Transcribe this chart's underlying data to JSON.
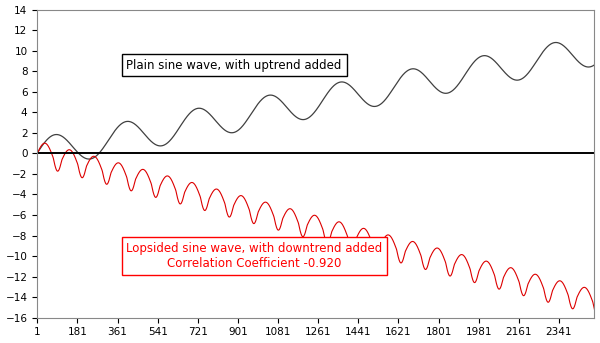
{
  "n_points": 2500,
  "uptrend_slope": 0.004,
  "downtrend_slope": -0.0058,
  "sine_amplitude": 1.5,
  "sine_period": 320,
  "lopsided_amplitude": 1.2,
  "lopsided_period": 110,
  "lopsided_factor": 0.65,
  "uptrend_label": "Plain sine wave, with uptrend added",
  "downtrend_label1": "Lopsided sine wave, with downtrend added",
  "downtrend_label2": "Correlation Coefficient -0.920",
  "xlim": [
    1,
    2500
  ],
  "ylim": [
    -16,
    14
  ],
  "xticks": [
    1,
    181,
    361,
    541,
    721,
    901,
    1081,
    1261,
    1441,
    1621,
    1801,
    1981,
    2161,
    2341
  ],
  "yticks": [
    -16,
    -14,
    -12,
    -10,
    -8,
    -6,
    -4,
    -2,
    0,
    2,
    4,
    6,
    8,
    10,
    12,
    14
  ],
  "line1_color": "#404040",
  "line2_color": "#dd0000",
  "hline_color": "#000000",
  "background_color": "#ffffff",
  "fig_width": 6.0,
  "fig_height": 3.43,
  "dpi": 100
}
